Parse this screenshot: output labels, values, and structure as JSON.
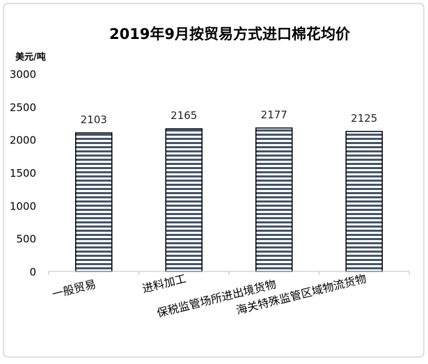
{
  "chart_data": {
    "type": "bar",
    "title": "2019年9月按贸易方式进口棉花均价",
    "ylabel": "美元/吨",
    "xlabel": "",
    "ylim": [
      0,
      3000
    ],
    "yticks": [
      "0",
      "500",
      "1000",
      "1500",
      "2000",
      "2500",
      "3000"
    ],
    "ytick_values": [
      0,
      500,
      1000,
      1500,
      2000,
      2500,
      3000
    ],
    "categories": [
      "一般贸易",
      "进料加工",
      "保税监管场所进出境货物",
      "海关特殊监管区域物流货物"
    ],
    "values": [
      2103,
      2165,
      2177,
      2125
    ],
    "data_labels": [
      "2103",
      "2165",
      "2177",
      "2125"
    ],
    "grid": false,
    "legend": "none",
    "colors": {
      "bar_stripe": "#44546a",
      "bar_outline": "#000000",
      "axis": "#bfbfbf"
    }
  }
}
